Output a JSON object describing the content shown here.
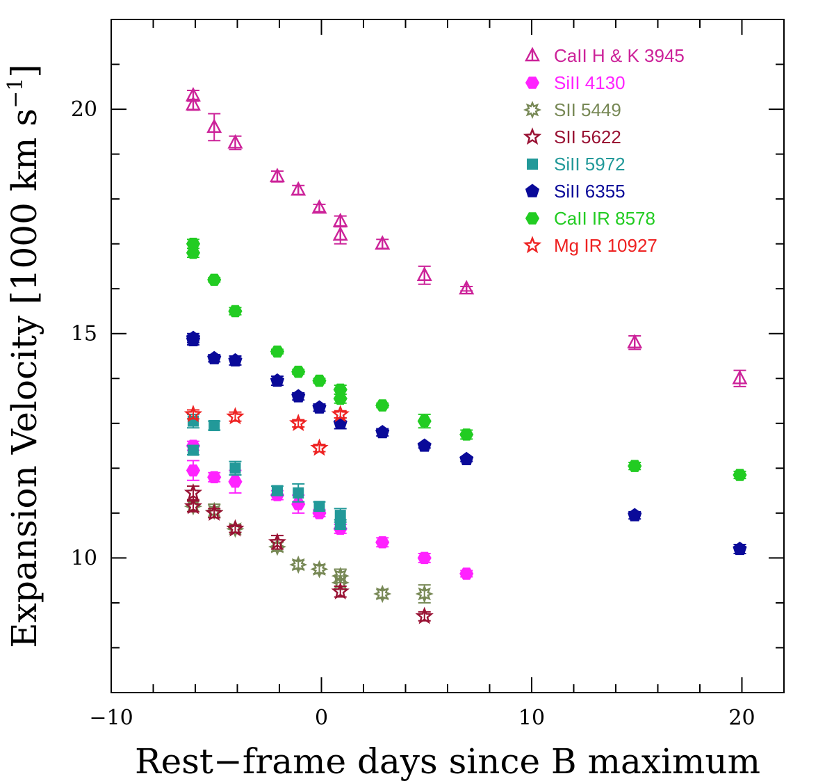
{
  "chart_data": {
    "type": "scatter",
    "title": "",
    "xlabel": "Rest−frame days since B maximum",
    "ylabel": "Expansion Velocity [1000 km s",
    "ylabel_sup": "−1",
    "ylabel_close": "]",
    "xlim": [
      -10,
      22
    ],
    "ylim": [
      7.0,
      22.0
    ],
    "x_ticks": [
      -10,
      0,
      10,
      20
    ],
    "x_tick_labels": [
      "−10",
      "0",
      "10",
      "20"
    ],
    "y_ticks": [
      10,
      15,
      20
    ],
    "y_tick_labels": [
      "10",
      "15",
      "20"
    ],
    "grid": false,
    "legend_position": "top-right",
    "series": [
      {
        "name": "CaII H & K 3945",
        "color": "#cc2299",
        "marker": "triangle-open",
        "points": [
          {
            "x": -6.1,
            "y": 20.3,
            "err": 0.12
          },
          {
            "x": -6.1,
            "y": 20.1,
            "err": 0.12
          },
          {
            "x": -5.1,
            "y": 19.6,
            "err": 0.3
          },
          {
            "x": -4.1,
            "y": 19.25,
            "err": 0.15
          },
          {
            "x": -2.1,
            "y": 18.5,
            "err": 0.12
          },
          {
            "x": -1.1,
            "y": 18.2,
            "err": 0.1
          },
          {
            "x": -0.1,
            "y": 17.8,
            "err": 0.08
          },
          {
            "x": 0.9,
            "y": 17.5,
            "err": 0.12
          },
          {
            "x": 0.9,
            "y": 17.2,
            "err": 0.2
          },
          {
            "x": 2.9,
            "y": 17.0,
            "err": 0.1
          },
          {
            "x": 4.9,
            "y": 16.3,
            "err": 0.2
          },
          {
            "x": 6.9,
            "y": 16.0,
            "err": 0.05
          },
          {
            "x": 14.9,
            "y": 14.8,
            "err": 0.15
          },
          {
            "x": 19.9,
            "y": 14.0,
            "err": 0.18
          }
        ]
      },
      {
        "name": "SiII 4130",
        "color": "#ff22ff",
        "marker": "hexagon-filled",
        "points": [
          {
            "x": -6.1,
            "y": 12.5,
            "err": 0.1
          },
          {
            "x": -6.1,
            "y": 11.95,
            "err": 0.22
          },
          {
            "x": -5.1,
            "y": 11.8,
            "err": 0.1
          },
          {
            "x": -4.1,
            "y": 11.7,
            "err": 0.25
          },
          {
            "x": -2.1,
            "y": 11.4,
            "err": 0.1
          },
          {
            "x": -1.1,
            "y": 11.2,
            "err": 0.2
          },
          {
            "x": -0.1,
            "y": 11.0,
            "err": 0.08
          },
          {
            "x": 0.9,
            "y": 10.65,
            "err": 0.1
          },
          {
            "x": 2.9,
            "y": 10.35,
            "err": 0.1
          },
          {
            "x": 4.9,
            "y": 10.0,
            "err": 0.1
          },
          {
            "x": 6.9,
            "y": 9.65,
            "err": 0.07
          }
        ]
      },
      {
        "name": "SII 5449",
        "color": "#778855",
        "marker": "star8-open",
        "points": [
          {
            "x": -6.1,
            "y": 11.15,
            "err": 0.12
          },
          {
            "x": -5.1,
            "y": 11.05,
            "err": 0.15
          },
          {
            "x": -4.1,
            "y": 10.65,
            "err": 0.08
          },
          {
            "x": -2.1,
            "y": 10.25,
            "err": 0.1
          },
          {
            "x": -1.1,
            "y": 9.85,
            "err": 0.1
          },
          {
            "x": -0.1,
            "y": 9.75,
            "err": 0.1
          },
          {
            "x": 0.9,
            "y": 9.6,
            "err": 0.15
          },
          {
            "x": 0.9,
            "y": 9.45,
            "err": 0.15
          },
          {
            "x": 2.9,
            "y": 9.2,
            "err": 0.1
          },
          {
            "x": 4.9,
            "y": 9.2,
            "err": 0.2
          }
        ]
      },
      {
        "name": "SII 5622",
        "color": "#991133",
        "marker": "star5-open",
        "points": [
          {
            "x": -6.1,
            "y": 11.45,
            "err": 0.15
          },
          {
            "x": -6.1,
            "y": 11.15,
            "err": 0.12
          },
          {
            "x": -5.1,
            "y": 11.0,
            "err": 0.1
          },
          {
            "x": -4.1,
            "y": 10.65,
            "err": 0.08
          },
          {
            "x": -2.1,
            "y": 10.35,
            "err": 0.15
          },
          {
            "x": 0.9,
            "y": 9.25,
            "err": 0.12
          },
          {
            "x": 4.9,
            "y": 8.7,
            "err": 0.1
          }
        ]
      },
      {
        "name": "SiII 5972",
        "color": "#229999",
        "marker": "square-filled",
        "points": [
          {
            "x": -6.1,
            "y": 13.05,
            "err": 0.15
          },
          {
            "x": -6.1,
            "y": 12.4,
            "err": 0.1
          },
          {
            "x": -5.1,
            "y": 12.95,
            "err": 0.1
          },
          {
            "x": -4.1,
            "y": 12.0,
            "err": 0.15
          },
          {
            "x": -2.1,
            "y": 11.5,
            "err": 0.1
          },
          {
            "x": -1.1,
            "y": 11.45,
            "err": 0.2
          },
          {
            "x": -0.1,
            "y": 11.15,
            "err": 0.1
          },
          {
            "x": 0.9,
            "y": 10.95,
            "err": 0.15
          },
          {
            "x": 0.9,
            "y": 10.75,
            "err": 0.1
          }
        ]
      },
      {
        "name": "SiII 6355",
        "color": "#0a0a99",
        "marker": "pentagon-filled",
        "points": [
          {
            "x": -6.1,
            "y": 14.9,
            "err": 0.1
          },
          {
            "x": -6.1,
            "y": 14.85,
            "err": 0.1
          },
          {
            "x": -5.1,
            "y": 14.45,
            "err": 0.08
          },
          {
            "x": -4.1,
            "y": 14.4,
            "err": 0.1
          },
          {
            "x": -2.1,
            "y": 13.95,
            "err": 0.1
          },
          {
            "x": -1.1,
            "y": 13.6,
            "err": 0.08
          },
          {
            "x": -0.1,
            "y": 13.35,
            "err": 0.08
          },
          {
            "x": 0.9,
            "y": 13.0,
            "err": 0.12
          },
          {
            "x": 2.9,
            "y": 12.8,
            "err": 0.08
          },
          {
            "x": 4.9,
            "y": 12.5,
            "err": 0.05
          },
          {
            "x": 6.9,
            "y": 12.2,
            "err": 0.05
          },
          {
            "x": 14.9,
            "y": 10.95,
            "err": 0.08
          },
          {
            "x": 19.9,
            "y": 10.2,
            "err": 0.1
          }
        ]
      },
      {
        "name": "CaII IR 8578",
        "color": "#22cc22",
        "marker": "hexagon-filled",
        "points": [
          {
            "x": -6.1,
            "y": 17.0,
            "err": 0.1
          },
          {
            "x": -6.1,
            "y": 16.8,
            "err": 0.1
          },
          {
            "x": -5.1,
            "y": 16.2,
            "err": 0.05
          },
          {
            "x": -4.1,
            "y": 15.5,
            "err": 0.08
          },
          {
            "x": -2.1,
            "y": 14.6,
            "err": 0.05
          },
          {
            "x": -1.1,
            "y": 14.15,
            "err": 0.05
          },
          {
            "x": -0.1,
            "y": 13.95,
            "err": 0.05
          },
          {
            "x": 0.9,
            "y": 13.75,
            "err": 0.1
          },
          {
            "x": 0.9,
            "y": 13.55,
            "err": 0.1
          },
          {
            "x": 2.9,
            "y": 13.4,
            "err": 0.05
          },
          {
            "x": 4.9,
            "y": 13.05,
            "err": 0.15
          },
          {
            "x": 6.9,
            "y": 12.75,
            "err": 0.1
          },
          {
            "x": 14.9,
            "y": 12.05,
            "err": 0.08
          },
          {
            "x": 19.9,
            "y": 11.85,
            "err": 0.08
          }
        ]
      },
      {
        "name": "Mg IR 10927",
        "color": "#ee2222",
        "marker": "star5-open",
        "points": [
          {
            "x": -6.1,
            "y": 13.2,
            "err": 0.1
          },
          {
            "x": -4.1,
            "y": 13.15,
            "err": 0.1
          },
          {
            "x": -1.1,
            "y": 13.0,
            "err": 0.08
          },
          {
            "x": -0.1,
            "y": 12.45,
            "err": 0.08
          },
          {
            "x": 0.9,
            "y": 13.2,
            "err": 0.08
          }
        ]
      }
    ]
  }
}
